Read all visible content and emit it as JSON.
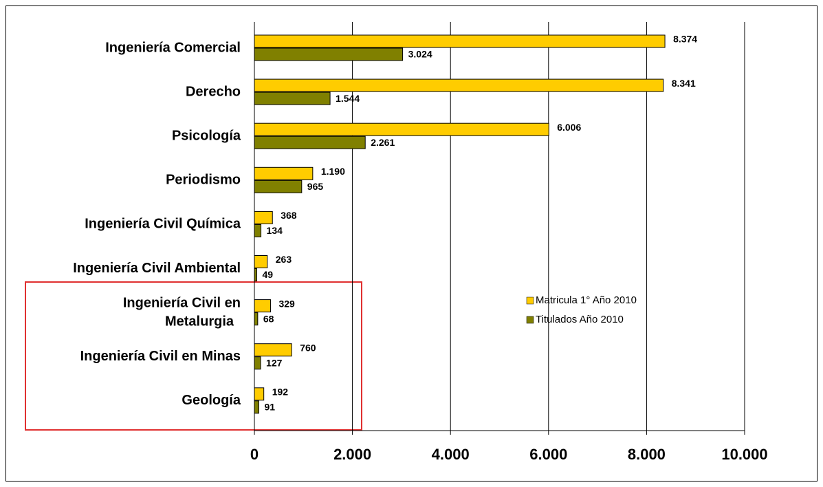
{
  "chart_data": {
    "type": "hbar",
    "categories": [
      "Ingeniería Comercial",
      "Derecho",
      "Psicología",
      "Periodismo",
      "Ingeniería Civil Química",
      "Ingeniería Civil Ambiental",
      "Ingeniería Civil en Metalurgia",
      "Ingeniería Civil en Minas",
      "Geología"
    ],
    "series": [
      {
        "name": "Matricula 1° Año 2010",
        "color": "#FFCC00",
        "values": [
          8374,
          8341,
          6006,
          1190,
          368,
          263,
          329,
          760,
          192
        ],
        "value_labels": [
          "8.374",
          "8.341",
          "6.006",
          "1.190",
          "368",
          "263",
          "329",
          "760",
          "192"
        ]
      },
      {
        "name": "Titulados Año 2010",
        "color": "#808000",
        "values": [
          3024,
          1544,
          2261,
          965,
          134,
          49,
          68,
          127,
          91
        ],
        "value_labels": [
          "3.024",
          "1.544",
          "2.261",
          "965",
          "134",
          "49",
          "68",
          "127",
          "91"
        ]
      }
    ],
    "xlim": [
      0,
      10000
    ],
    "xticks": [
      0,
      {
        "value": 2000,
        "label": "2.000"
      },
      {
        "value": 4000,
        "label": "4.000"
      },
      {
        "value": 6000,
        "label": "6.000"
      },
      {
        "value": 8000,
        "label": "8.000"
      },
      {
        "value": 10000,
        "label": "10.000"
      }
    ],
    "grid": true,
    "legend": "right"
  }
}
